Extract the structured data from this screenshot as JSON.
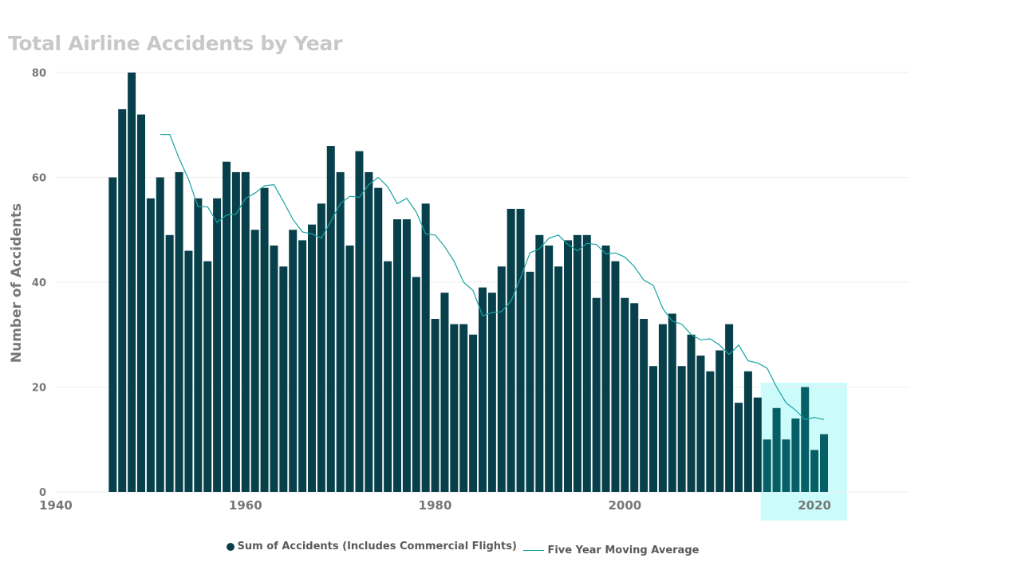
{
  "chart_data": {
    "type": "bar",
    "title": "Total Airline Accidents by Year",
    "ylabel": "Number of Accidents",
    "xlabel": "",
    "xlim": [
      1940,
      2030
    ],
    "ylim": [
      0,
      80
    ],
    "x_ticks": [
      1940,
      1960,
      1980,
      2000,
      2020
    ],
    "y_ticks": [
      0,
      20,
      40,
      60,
      80
    ],
    "grid": true,
    "legend_position": "bottom",
    "highlight_range": [
      2015,
      2022
    ],
    "colors": {
      "bars": "#07404a",
      "highlight_bars": "#065f66",
      "line": "#1aa3a3",
      "highlight_fill": "#ccfbfb"
    },
    "categories": [
      1946,
      1947,
      1948,
      1949,
      1950,
      1951,
      1952,
      1953,
      1954,
      1955,
      1956,
      1957,
      1958,
      1959,
      1960,
      1961,
      1962,
      1963,
      1964,
      1965,
      1966,
      1967,
      1968,
      1969,
      1970,
      1971,
      1972,
      1973,
      1974,
      1975,
      1976,
      1977,
      1978,
      1979,
      1980,
      1981,
      1982,
      1983,
      1984,
      1985,
      1986,
      1987,
      1988,
      1989,
      1990,
      1991,
      1992,
      1993,
      1994,
      1995,
      1996,
      1997,
      1998,
      1999,
      2000,
      2001,
      2002,
      2003,
      2004,
      2005,
      2006,
      2007,
      2008,
      2009,
      2010,
      2011,
      2012,
      2013,
      2014,
      2015,
      2016,
      2017,
      2018,
      2019,
      2020,
      2021
    ],
    "series": [
      {
        "name": "Sum of Accidents (Includes Commercial Flights)",
        "type": "bar",
        "values": [
          60,
          73,
          80,
          72,
          56,
          60,
          49,
          61,
          46,
          56,
          44,
          56,
          63,
          61,
          61,
          50,
          58,
          47,
          43,
          50,
          48,
          51,
          55,
          66,
          61,
          47,
          65,
          61,
          58,
          44,
          52,
          52,
          41,
          55,
          33,
          38,
          32,
          32,
          30,
          39,
          38,
          43,
          54,
          54,
          42,
          49,
          47,
          43,
          48,
          49,
          49,
          37,
          47,
          44,
          37,
          36,
          33,
          24,
          32,
          34,
          24,
          30,
          26,
          23,
          27,
          32,
          17,
          23,
          18,
          10,
          16,
          10,
          14,
          20,
          8,
          11
        ]
      },
      {
        "name": "Five Year Moving Average",
        "type": "line",
        "x": [
          1951,
          1952,
          1953,
          1954,
          1955,
          1956,
          1957,
          1958,
          1959,
          1960,
          1961,
          1962,
          1963,
          1964,
          1965,
          1966,
          1967,
          1968,
          1969,
          1970,
          1971,
          1972,
          1973,
          1974,
          1975,
          1976,
          1977,
          1978,
          1979,
          1980,
          1981,
          1982,
          1983,
          1984,
          1985,
          1986,
          1987,
          1988,
          1989,
          1990,
          1991,
          1992,
          1993,
          1994,
          1995,
          1996,
          1997,
          1998,
          1999,
          2000,
          2001,
          2002,
          2003,
          2004,
          2005,
          2006,
          2007,
          2008,
          2009,
          2010,
          2011,
          2012,
          2013,
          2014,
          2015,
          2016,
          2017,
          2018,
          2019,
          2020,
          2021
        ],
        "values": [
          68.2,
          68.2,
          63.6,
          59.6,
          54.4,
          54.4,
          51.4,
          52.8,
          53.0,
          56.0,
          57.0,
          58.4,
          58.6,
          55.4,
          52.0,
          49.6,
          49.2,
          48.4,
          51.6,
          55.0,
          56.4,
          56.2,
          58.6,
          60.0,
          58.2,
          55.0,
          56.0,
          53.4,
          49.2,
          49.0,
          46.8,
          44.0,
          40.0,
          38.4,
          33.6,
          34.2,
          34.4,
          36.4,
          40.8,
          45.6,
          46.4,
          48.4,
          49.0,
          47.2,
          46.0,
          47.4,
          47.2,
          45.4,
          45.6,
          44.8,
          43.0,
          40.4,
          39.4,
          35.0,
          32.6,
          32.0,
          30.0,
          29.0,
          29.2,
          28.0,
          26.2,
          28.0,
          25.0,
          24.6,
          23.6,
          20.0,
          17.0,
          15.6,
          13.8,
          14.2,
          13.8
        ]
      }
    ]
  }
}
